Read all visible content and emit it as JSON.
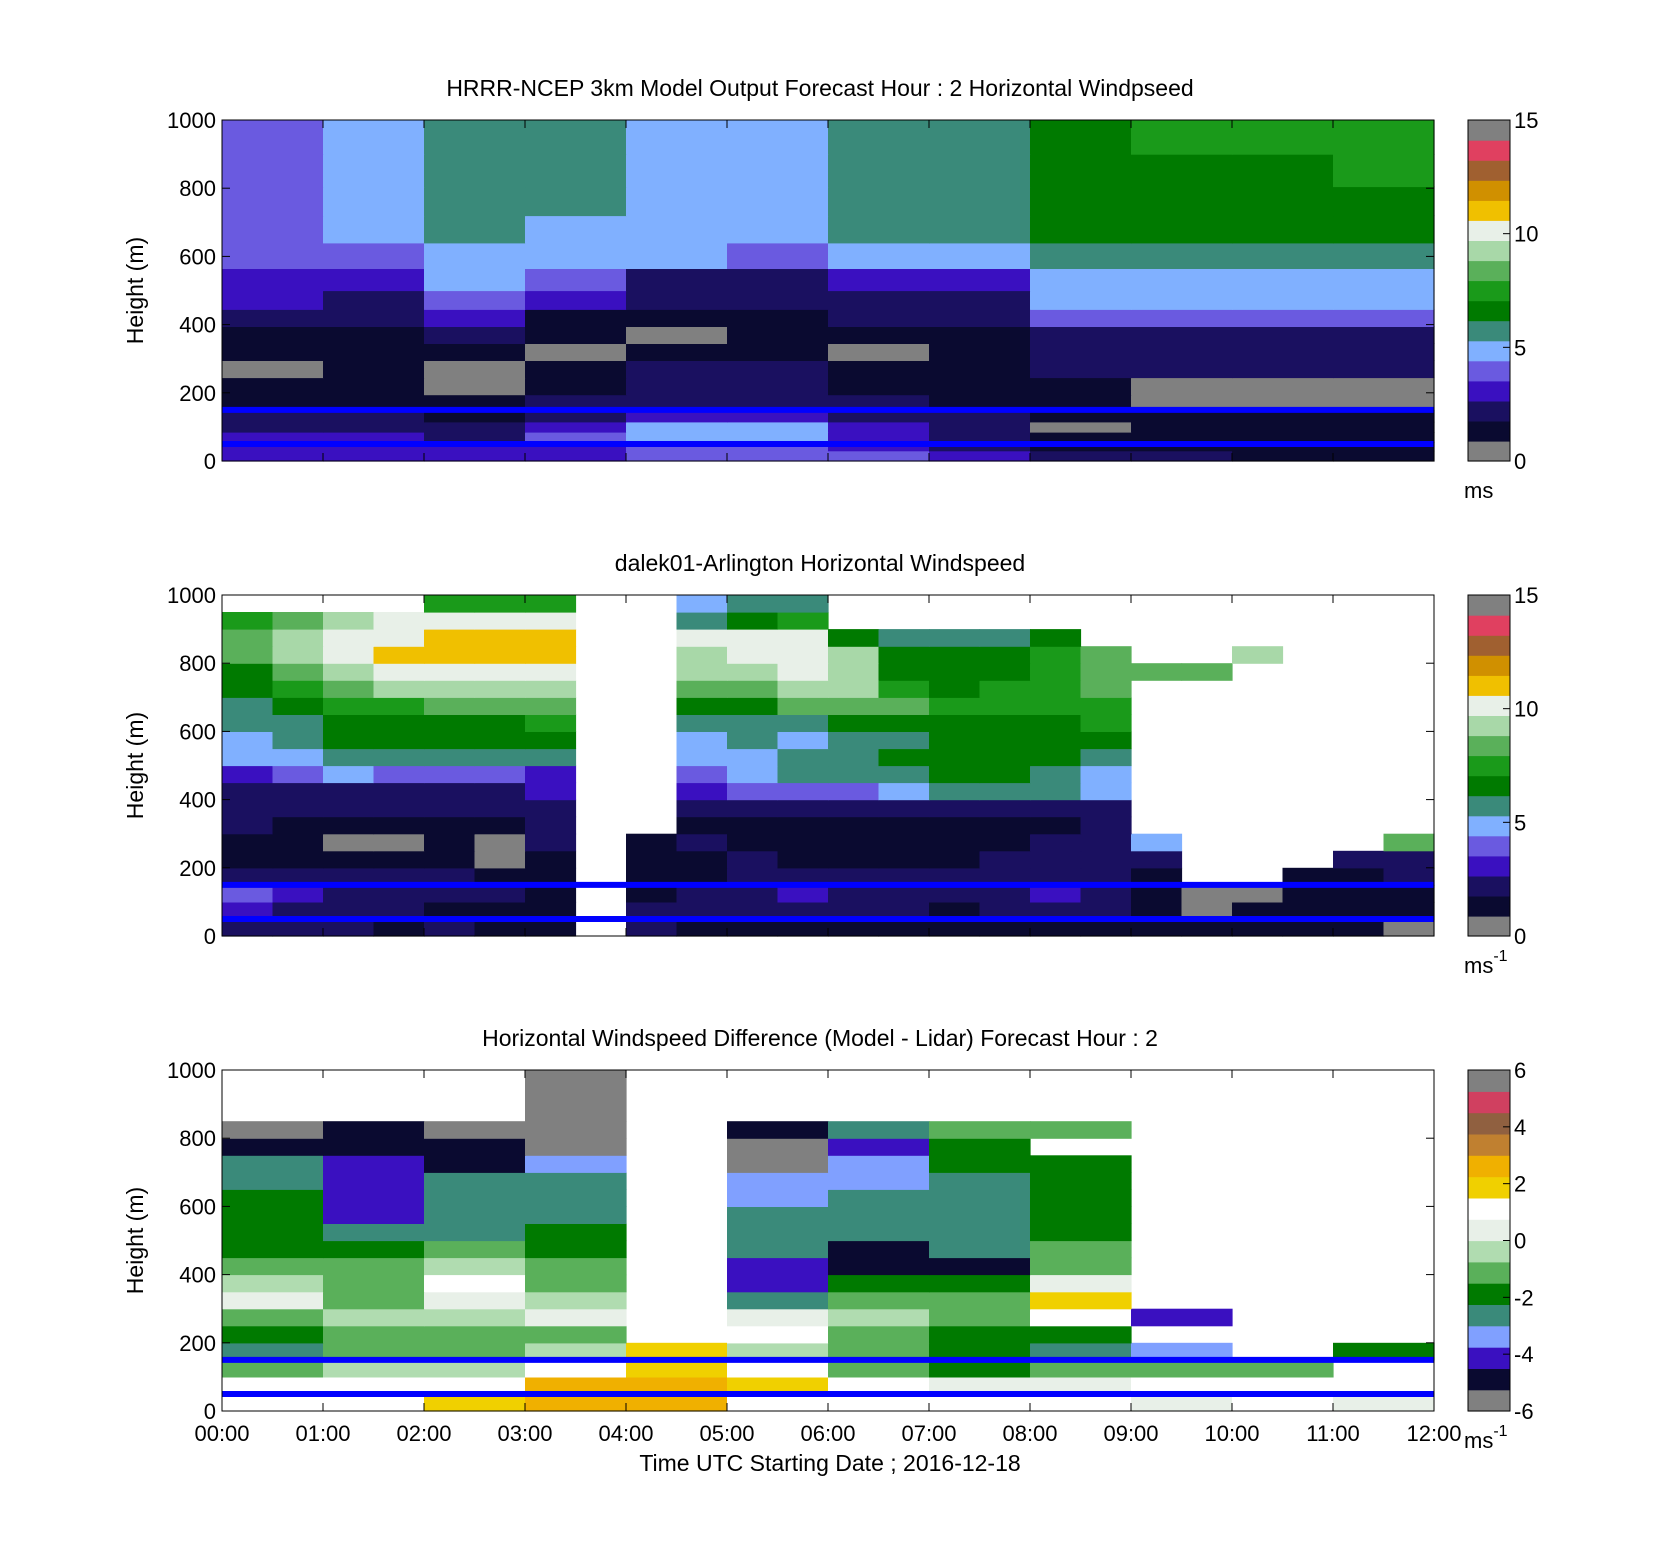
{
  "colors": {
    "reference_line": "#0000ff",
    "missing": "#808080",
    "speed_colormap": [
      "#808080",
      "#0a0a30",
      "#1a1060",
      "#3a10c0",
      "#6a5ae0",
      "#80b0ff",
      "#3a8a7a",
      "#007a00",
      "#1a9a1a",
      "#5ab05a",
      "#a8d8a8",
      "#e8f0e8",
      "#f0c000",
      "#d09000",
      "#a06030",
      "#e04060",
      "#808080"
    ],
    "diff_colormap": [
      "#808080",
      "#0a0a30",
      "#3a10c0",
      "#80a0ff",
      "#3a8a7a",
      "#007a00",
      "#5ab05a",
      "#b0dcb0",
      "#e8f0e8",
      "#ffffff",
      "#f0d000",
      "#f0b000",
      "#c08030",
      "#906040",
      "#d04060",
      "#808080"
    ]
  },
  "x_tick_labels": [
    "00:00",
    "01:00",
    "02:00",
    "03:00",
    "04:00",
    "05:00",
    "06:00",
    "07:00",
    "08:00",
    "09:00",
    "10:00",
    "11:00",
    "12:00"
  ],
  "x_axis_label": "Time UTC  Starting Date ; 2016-12-18",
  "chart_data": [
    {
      "type": "heatmap",
      "title": "HRRR-NCEP 3km Model Output   Forecast Hour : 2 Horizontal Windpseed",
      "xlabel": "",
      "ylabel": "Height (m)",
      "xlim": [
        0,
        12
      ],
      "ylim": [
        0,
        1000
      ],
      "y_tick_labels": [
        "0",
        "200",
        "400",
        "600",
        "800",
        "1000"
      ],
      "colorbar": {
        "min": 0,
        "max": 15,
        "tick_labels": [
          "0",
          "5",
          "10",
          "15"
        ],
        "unit": "ms"
      },
      "reference_lines_m": [
        50,
        150
      ],
      "heights_m": [
        20,
        40,
        70,
        100,
        130,
        170,
        220,
        270,
        320,
        370,
        420,
        470,
        530,
        600,
        680,
        760,
        850,
        950
      ],
      "times_h": [
        0.5,
        1.5,
        2.5,
        3.5,
        4.5,
        5.5,
        6.5,
        7.5,
        8.5,
        9.5,
        10.5,
        11.5
      ],
      "values": [
        [
          3.5,
          3.5,
          3.0,
          3.5,
          4.2,
          4.2,
          3.8,
          3.0,
          1.8,
          1.8,
          1.5,
          1.6
        ],
        [
          3.0,
          3.2,
          2.8,
          3.0,
          4.0,
          4.0,
          3.5,
          2.5,
          1.5,
          1.4,
          1.2,
          1.3
        ],
        [
          3.4,
          2.8,
          2.2,
          3.6,
          5.0,
          5.0,
          3.0,
          2.2,
          1.2,
          1.4,
          1.6,
          1.5
        ],
        [
          2.6,
          2.6,
          1.8,
          3.2,
          5.2,
          5.2,
          2.8,
          2.0,
          0.8,
          1.2,
          1.5,
          1.4
        ],
        [
          2.0,
          2.2,
          1.5,
          2.5,
          3.2,
          3.2,
          2.4,
          2.0,
          1.2,
          1.0,
          1.2,
          1.3
        ],
        [
          1.2,
          1.6,
          1.0,
          2.0,
          2.6,
          2.6,
          1.8,
          1.5,
          1.0,
          0.8,
          0.8,
          0.4
        ],
        [
          1.0,
          1.4,
          0.8,
          1.6,
          2.4,
          2.4,
          1.4,
          1.2,
          0.9,
          0.5,
          0.6,
          0.4
        ],
        [
          0.3,
          1.2,
          0.3,
          1.4,
          2.0,
          2.0,
          1.2,
          1.0,
          1.8,
          2.0,
          2.0,
          2.0
        ],
        [
          0.9,
          0.9,
          1.1,
          0.3,
          1.2,
          1.2,
          0.3,
          0.9,
          2.4,
          2.4,
          2.2,
          2.2
        ],
        [
          1.1,
          0.9,
          1.8,
          1.0,
          0.3,
          1.0,
          1.4,
          1.2,
          2.6,
          2.6,
          2.4,
          2.4
        ],
        [
          2.4,
          1.8,
          2.8,
          1.6,
          1.4,
          1.6,
          2.0,
          1.8,
          4.2,
          4.2,
          4.0,
          4.0
        ],
        [
          2.8,
          2.4,
          4.0,
          2.8,
          1.8,
          2.0,
          2.6,
          2.2,
          4.8,
          4.8,
          4.6,
          4.6
        ],
        [
          3.4,
          3.4,
          4.8,
          4.2,
          2.6,
          2.4,
          3.0,
          3.2,
          5.0,
          5.0,
          4.8,
          4.8
        ],
        [
          4.4,
          4.4,
          5.0,
          5.0,
          5.0,
          4.2,
          5.2,
          5.2,
          5.8,
          5.8,
          5.8,
          5.8
        ],
        [
          4.2,
          5.0,
          5.6,
          5.2,
          5.0,
          5.0,
          5.6,
          5.6,
          6.2,
          6.4,
          6.2,
          6.2
        ],
        [
          4.2,
          4.8,
          5.8,
          5.6,
          5.0,
          5.0,
          5.8,
          5.8,
          6.6,
          6.8,
          6.8,
          6.8
        ],
        [
          3.6,
          4.8,
          5.6,
          5.6,
          5.0,
          5.0,
          5.8,
          5.8,
          6.8,
          7.0,
          7.0,
          7.4
        ],
        [
          3.6,
          4.6,
          5.4,
          5.4,
          5.0,
          5.0,
          5.8,
          5.8,
          6.8,
          7.1,
          7.1,
          7.6
        ]
      ]
    },
    {
      "type": "heatmap",
      "title": "dalek01-Arlington  Horizontal Windspeed",
      "xlabel": "",
      "ylabel": "Height (m)",
      "xlim": [
        0,
        12
      ],
      "ylim": [
        0,
        1000
      ],
      "y_tick_labels": [
        "0",
        "200",
        "400",
        "600",
        "800",
        "1000"
      ],
      "colorbar": {
        "min": 0,
        "max": 15,
        "tick_labels": [
          "0",
          "5",
          "10",
          "15"
        ],
        "unit": "ms",
        "unit_exponent": "-1"
      },
      "reference_lines_m": [
        50,
        150
      ],
      "heights_m": [
        25,
        75,
        125,
        175,
        225,
        275,
        325,
        375,
        425,
        475,
        525,
        575,
        625,
        675,
        725,
        775,
        825,
        875,
        925,
        975
      ],
      "times_h": [
        0.25,
        0.75,
        1.25,
        1.75,
        2.25,
        2.75,
        3.25,
        3.75,
        4.25,
        4.75,
        5.25,
        5.75,
        6.25,
        6.75,
        7.25,
        7.75,
        8.25,
        8.75,
        9.25,
        9.75,
        10.25,
        10.75,
        11.25,
        11.75
      ],
      "values": [
        [
          2.0,
          2.2,
          1.8,
          1.6,
          1.8,
          1.5,
          1.6,
          null,
          1.8,
          1.6,
          1.4,
          1.6,
          1.2,
          1.4,
          1.2,
          1.4,
          1.5,
          1.6,
          1.2,
          1.0,
          0.9,
          1.0,
          1.0,
          0.8
        ],
        [
          3.2,
          2.6,
          2.2,
          2.0,
          1.6,
          1.4,
          1.6,
          null,
          1.8,
          2.0,
          2.0,
          2.2,
          1.8,
          1.8,
          1.6,
          1.8,
          2.0,
          1.8,
          1.4,
          0.8,
          0.9,
          1.2,
          1.2,
          1.0
        ],
        [
          3.6,
          3.0,
          2.4,
          2.2,
          2.0,
          1.8,
          1.4,
          null,
          1.4,
          2.2,
          2.6,
          2.8,
          2.4,
          2.4,
          2.2,
          2.6,
          2.8,
          2.6,
          1.2,
          0.7,
          0.6,
          1.2,
          1.6,
          1.6
        ],
        [
          2.4,
          2.2,
          2.0,
          2.0,
          1.8,
          1.6,
          1.2,
          null,
          1.0,
          1.6,
          2.0,
          2.2,
          2.0,
          2.4,
          2.2,
          2.4,
          2.6,
          2.6,
          1.6,
          null,
          null,
          1.4,
          1.6,
          1.8
        ],
        [
          1.6,
          1.4,
          1.2,
          1.0,
          1.0,
          0.8,
          1.0,
          null,
          1.2,
          1.6,
          1.8,
          1.4,
          1.2,
          1.4,
          1.6,
          1.8,
          2.0,
          2.0,
          2.6,
          null,
          null,
          null,
          1.8,
          2.0
        ],
        [
          1.2,
          1.0,
          0.8,
          0.8,
          1.0,
          0.8,
          1.8,
          null,
          1.4,
          1.8,
          1.4,
          1.2,
          1.0,
          1.2,
          1.4,
          1.6,
          1.8,
          2.0,
          5.0,
          null,
          null,
          null,
          null,
          8.5
        ],
        [
          1.8,
          1.6,
          1.6,
          1.4,
          1.4,
          1.2,
          2.2,
          null,
          null,
          1.6,
          1.4,
          1.0,
          1.2,
          1.2,
          1.4,
          1.4,
          1.6,
          1.8,
          null,
          null,
          null,
          null,
          null,
          null
        ],
        [
          2.2,
          2.0,
          2.0,
          2.0,
          2.0,
          1.8,
          2.6,
          null,
          null,
          2.4,
          2.2,
          2.4,
          2.0,
          2.0,
          2.0,
          2.0,
          2.2,
          2.4,
          null,
          null,
          null,
          null,
          null,
          null
        ],
        [
          2.4,
          2.2,
          2.4,
          2.6,
          2.6,
          2.2,
          3.2,
          null,
          null,
          3.4,
          3.6,
          4.2,
          4.4,
          5.2,
          5.6,
          5.6,
          5.4,
          5.0,
          null,
          null,
          null,
          null,
          null,
          null
        ],
        [
          3.0,
          4.2,
          4.6,
          4.4,
          4.4,
          4.2,
          3.4,
          null,
          null,
          4.4,
          4.8,
          5.4,
          5.8,
          6.0,
          6.2,
          6.2,
          5.6,
          5.2,
          null,
          null,
          null,
          null,
          null,
          null
        ],
        [
          4.8,
          5.2,
          5.6,
          5.8,
          5.8,
          5.8,
          5.4,
          null,
          null,
          5.0,
          5.2,
          5.4,
          6.0,
          6.4,
          6.6,
          6.6,
          6.2,
          6.0,
          null,
          null,
          null,
          null,
          null,
          null
        ],
        [
          5.2,
          5.8,
          6.2,
          6.4,
          6.6,
          6.8,
          6.4,
          null,
          null,
          5.2,
          5.4,
          5.2,
          5.8,
          6.0,
          6.2,
          6.4,
          6.4,
          6.6,
          null,
          null,
          null,
          null,
          null,
          null
        ],
        [
          5.4,
          6.0,
          6.4,
          6.6,
          6.8,
          7.0,
          7.2,
          null,
          null,
          5.4,
          5.6,
          5.6,
          6.2,
          6.4,
          6.6,
          6.8,
          7.0,
          7.2,
          null,
          null,
          null,
          null,
          null,
          null
        ],
        [
          5.8,
          6.6,
          7.4,
          7.6,
          8.2,
          8.6,
          8.8,
          null,
          null,
          6.4,
          7.0,
          8.2,
          8.6,
          8.8,
          7.4,
          7.2,
          7.6,
          7.6,
          null,
          null,
          null,
          null,
          null,
          null
        ],
        [
          6.2,
          7.6,
          8.6,
          9.0,
          9.0,
          9.2,
          9.4,
          null,
          null,
          8.6,
          8.8,
          9.2,
          9.4,
          7.6,
          6.8,
          7.2,
          7.6,
          8.0,
          null,
          null,
          null,
          null,
          null,
          null
        ],
        [
          7.0,
          8.6,
          9.4,
          9.8,
          10.0,
          10.2,
          10.4,
          null,
          null,
          9.4,
          9.6,
          9.8,
          9.6,
          7.0,
          6.4,
          6.8,
          7.4,
          8.2,
          8.4,
          8.6,
          null,
          null,
          null,
          null
        ],
        [
          8.6,
          9.2,
          10.4,
          10.8,
          11.0,
          11.4,
          11.2,
          null,
          null,
          9.6,
          9.8,
          9.8,
          9.6,
          6.4,
          6.2,
          6.6,
          7.2,
          8.0,
          null,
          null,
          9.0,
          null,
          null,
          null
        ],
        [
          8.8,
          9.4,
          10.0,
          10.4,
          10.6,
          10.8,
          11.0,
          null,
          null,
          9.8,
          10.0,
          10.0,
          6.2,
          5.4,
          5.6,
          6.0,
          7.0,
          null,
          null,
          null,
          null,
          null,
          null,
          null
        ],
        [
          7.6,
          8.8,
          9.6,
          9.8,
          9.8,
          10.0,
          10.2,
          null,
          null,
          6.0,
          6.4,
          7.4,
          null,
          null,
          null,
          null,
          null,
          null,
          null,
          null,
          null,
          null,
          null,
          null
        ],
        [
          null,
          null,
          null,
          null,
          7.4,
          7.6,
          7.8,
          null,
          null,
          5.2,
          5.4,
          6.0,
          null,
          null,
          null,
          null,
          null,
          null,
          null,
          null,
          null,
          null,
          null,
          null
        ]
      ]
    },
    {
      "type": "heatmap",
      "title": "Horizontal Windspeed Difference (Model - Lidar) Forecast Hour : 2",
      "xlabel": "Time UTC  Starting Date ; 2016-12-18",
      "ylabel": "Height (m)",
      "xlim": [
        0,
        12
      ],
      "ylim": [
        0,
        1000
      ],
      "y_tick_labels": [
        "0",
        "200",
        "400",
        "600",
        "800",
        "1000"
      ],
      "colorbar": {
        "min": -6,
        "max": 6,
        "tick_labels": [
          "-6",
          "-4",
          "-2",
          "0",
          "2",
          "4",
          "6"
        ],
        "unit": "ms",
        "unit_exponent": "-1"
      },
      "reference_lines_m": [
        50,
        150
      ],
      "heights_m": [
        25,
        75,
        125,
        175,
        225,
        275,
        325,
        375,
        425,
        475,
        525,
        575,
        625,
        675,
        725,
        775,
        825,
        875
      ],
      "times_h": [
        0.5,
        1.5,
        2.5,
        3.5,
        4.5,
        5.5,
        6.5,
        7.5,
        8.5,
        9.5,
        10.5,
        11.5
      ],
      "values": [
        [
          0.8,
          1.2,
          1.6,
          2.4,
          2.6,
          1.2,
          1.0,
          0.8,
          0.9,
          0.6,
          1.0,
          0.5
        ],
        [
          1.0,
          1.2,
          1.4,
          2.6,
          2.8,
          1.6,
          1.4,
          0.6,
          0.4,
          0.8,
          1.2,
          0.8
        ],
        [
          -0.8,
          -0.4,
          -0.4,
          1.2,
          1.6,
          1.0,
          -0.8,
          -1.6,
          -1.2,
          -1.4,
          -1.2,
          null
        ],
        [
          -2.6,
          -1.4,
          -1.2,
          -0.6,
          1.8,
          -0.4,
          -1.0,
          -1.8,
          -2.6,
          -3.2,
          null,
          -1.8
        ],
        [
          -2.2,
          -1.0,
          -1.0,
          -0.8,
          null,
          1.0,
          -0.8,
          -1.6,
          -1.8,
          null,
          null,
          null
        ],
        [
          -1.4,
          -0.2,
          -0.6,
          0.2,
          null,
          0.2,
          -0.4,
          -1.2,
          1.4,
          -4.2,
          null,
          null
        ],
        [
          0.6,
          -1.0,
          0.4,
          -0.4,
          null,
          -2.6,
          -1.0,
          -1.4,
          1.6,
          null,
          null,
          null
        ],
        [
          -0.2,
          -1.2,
          1.2,
          -1.0,
          null,
          -4.0,
          -2.2,
          -1.6,
          0.6,
          null,
          null,
          null
        ],
        [
          -1.0,
          -1.4,
          -0.4,
          -1.4,
          null,
          -4.2,
          -4.6,
          -4.6,
          -1.2,
          null,
          null,
          null
        ],
        [
          -1.6,
          -1.6,
          -1.4,
          -1.6,
          null,
          -3.0,
          -4.8,
          -2.4,
          -1.0,
          null,
          null,
          null
        ],
        [
          -1.8,
          -2.6,
          -2.8,
          -2.2,
          null,
          -2.6,
          -2.8,
          -2.4,
          -1.6,
          null,
          null,
          null
        ],
        [
          -2.0,
          -4.0,
          -3.0,
          -2.6,
          null,
          -3.0,
          -2.8,
          -2.8,
          -1.8,
          null,
          null,
          null
        ],
        [
          -1.6,
          -4.4,
          -2.8,
          -2.8,
          null,
          -3.4,
          -3.0,
          -2.8,
          -2.0,
          null,
          null,
          null
        ],
        [
          -2.4,
          -4.2,
          -2.8,
          -2.8,
          null,
          -3.6,
          -3.2,
          -2.4,
          -1.6,
          null,
          null,
          null
        ],
        [
          -3.0,
          -3.8,
          -5.0,
          -3.6,
          null,
          -5.4,
          -3.6,
          -2.0,
          -1.8,
          null,
          null,
          null
        ],
        [
          -5.0,
          -4.6,
          -5.2,
          -5.4,
          null,
          -5.4,
          -3.8,
          -1.6,
          null,
          null,
          null,
          null
        ],
        [
          -5.6,
          -5.2,
          -5.6,
          -5.6,
          null,
          -5.0,
          -2.8,
          -1.2,
          -1.4,
          null,
          null,
          null
        ],
        [
          null,
          null,
          null,
          -5.8,
          null,
          null,
          null,
          null,
          null,
          null,
          null,
          null
        ]
      ]
    }
  ]
}
